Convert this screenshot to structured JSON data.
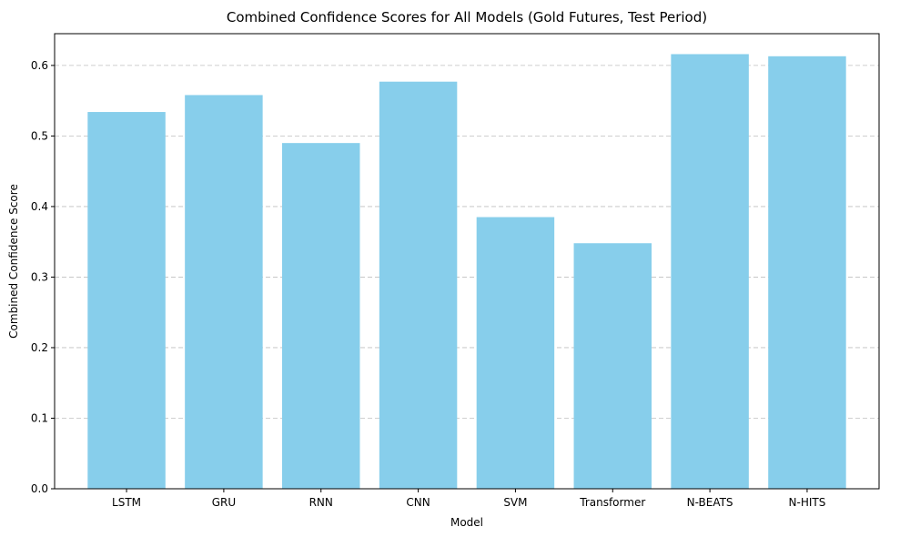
{
  "chart_data": {
    "type": "bar",
    "title": "Combined Confidence Scores for All Models (Gold Futures, Test Period)",
    "xlabel": "Model",
    "ylabel": "Combined Confidence Score",
    "categories": [
      "LSTM",
      "GRU",
      "RNN",
      "CNN",
      "SVM",
      "Transformer",
      "N-BEATS",
      "N-HITS"
    ],
    "values": [
      0.534,
      0.558,
      0.49,
      0.577,
      0.385,
      0.348,
      0.616,
      0.613
    ],
    "ylim": [
      0,
      0.645
    ],
    "yticks": [
      "0.0",
      "0.1",
      "0.2",
      "0.3",
      "0.4",
      "0.5",
      "0.6"
    ],
    "grid": "y-dashed",
    "bar_color": "#87CEEB"
  }
}
